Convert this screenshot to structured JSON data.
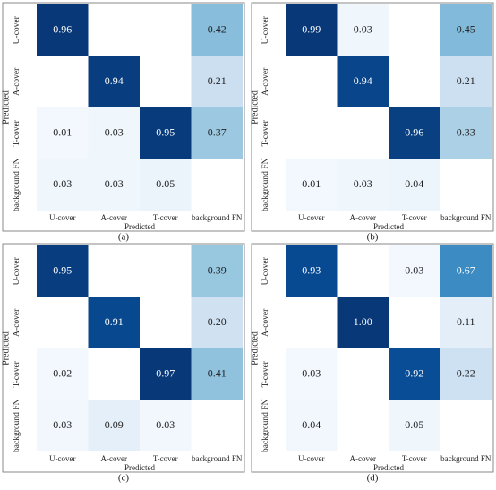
{
  "chart_data": [
    {
      "type": "heatmap",
      "caption": "(a)",
      "xlabel": "Predicted",
      "ylabel": "Predicted",
      "colormap": "Blues",
      "x_categories": [
        "U-cover",
        "A-cover",
        "T-cover",
        "background FN"
      ],
      "y_categories": [
        "U-cover",
        "A-cover",
        "T-cover",
        "background FN"
      ],
      "values": [
        [
          0.96,
          null,
          null,
          0.42
        ],
        [
          null,
          0.94,
          null,
          0.21
        ],
        [
          0.01,
          0.03,
          0.95,
          0.37
        ],
        [
          0.03,
          0.03,
          0.05,
          null
        ]
      ],
      "value_labels": [
        [
          "0.96",
          null,
          null,
          "0.42"
        ],
        [
          null,
          "0.94",
          null,
          "0.21"
        ],
        [
          "0.01",
          "0.03",
          "0.95",
          "0.37"
        ],
        [
          "0.03",
          "0.03",
          "0.05",
          null
        ]
      ]
    },
    {
      "type": "heatmap",
      "caption": "(b)",
      "xlabel": "Predicted",
      "ylabel": "Predicted",
      "colormap": "Blues",
      "x_categories": [
        "U-cover",
        "A-cover",
        "T-cover",
        "background FN"
      ],
      "y_categories": [
        "U-cover",
        "A-cover",
        "T-cover",
        "background FN"
      ],
      "values": [
        [
          0.99,
          0.03,
          null,
          0.45
        ],
        [
          null,
          0.94,
          null,
          0.21
        ],
        [
          null,
          null,
          0.96,
          0.33
        ],
        [
          0.01,
          0.03,
          0.04,
          null
        ]
      ],
      "value_labels": [
        [
          "0.99",
          "0.03",
          null,
          "0.45"
        ],
        [
          null,
          "0.94",
          null,
          "0.21"
        ],
        [
          null,
          null,
          "0.96",
          "0.33"
        ],
        [
          "0.01",
          "0.03",
          "0.04",
          null
        ]
      ]
    },
    {
      "type": "heatmap",
      "caption": "(c)",
      "xlabel": "Predicted",
      "ylabel": "Predicted",
      "colormap": "Blues",
      "x_categories": [
        "U-cover",
        "A-cover",
        "T-cover",
        "background FN"
      ],
      "y_categories": [
        "U-cover",
        "A-cover",
        "T-cover",
        "background FN"
      ],
      "values": [
        [
          0.95,
          null,
          null,
          0.39
        ],
        [
          null,
          0.91,
          null,
          0.2
        ],
        [
          0.02,
          null,
          0.97,
          0.41
        ],
        [
          0.03,
          0.09,
          0.03,
          null
        ]
      ],
      "value_labels": [
        [
          "0.95",
          null,
          null,
          "0.39"
        ],
        [
          null,
          "0.91",
          null,
          "0.20"
        ],
        [
          "0.02",
          null,
          "0.97",
          "0.41"
        ],
        [
          "0.03",
          "0.09",
          "0.03",
          null
        ]
      ]
    },
    {
      "type": "heatmap",
      "caption": "(d)",
      "xlabel": "Predicted",
      "ylabel": "Predicted",
      "colormap": "Blues",
      "x_categories": [
        "U-cover",
        "A-cover",
        "T-cover",
        "background FN"
      ],
      "y_categories": [
        "U-cover",
        "A-cover",
        "T-cover",
        "background FN"
      ],
      "values": [
        [
          0.93,
          null,
          0.03,
          0.67
        ],
        [
          null,
          1,
          null,
          0.11
        ],
        [
          0.03,
          null,
          0.92,
          0.22
        ],
        [
          0.04,
          null,
          0.05,
          null
        ]
      ],
      "value_labels": [
        [
          "0.93",
          null,
          "0.03",
          "0.67"
        ],
        [
          null,
          "1.00",
          null,
          "0.11"
        ],
        [
          "0.03",
          null,
          "0.92",
          "0.22"
        ],
        [
          "0.04",
          null,
          "0.05",
          null
        ]
      ]
    }
  ]
}
